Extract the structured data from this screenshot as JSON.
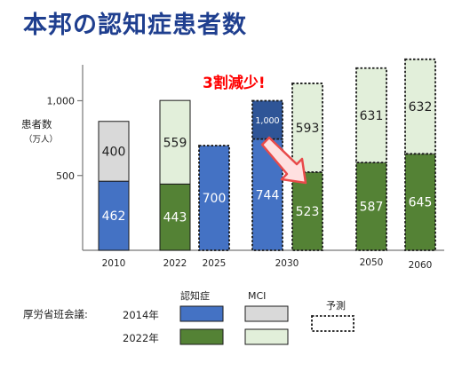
{
  "title": "本邦の認知症患者数",
  "chart_data": {
    "type": "bar",
    "stacked": true,
    "ylabel": "患者数",
    "yunit": "（万人）",
    "yticks": [
      {
        "value": 500,
        "label": "500"
      },
      {
        "value": 1000,
        "label": "1,000"
      }
    ],
    "ylim": [
      0,
      1200
    ],
    "series": [
      {
        "name": "認知症",
        "role": "dementia"
      },
      {
        "name": "MCI",
        "role": "mci"
      }
    ],
    "bars": [
      {
        "x": "2010",
        "study": "2014",
        "dementia": 462,
        "mci": 400,
        "forecast": false
      },
      {
        "x": "2022",
        "study": "2022",
        "dementia": 443,
        "mci": 559,
        "forecast": false
      },
      {
        "x": "2025",
        "study": "2014",
        "dementia": 700,
        "mci": null,
        "forecast": true
      },
      {
        "x": "2030",
        "study": "2014",
        "dementia": 744,
        "total": 1000,
        "total_label": "1,000",
        "forecast": true
      },
      {
        "x": "2030",
        "study": "2022",
        "dementia": 523,
        "mci": 593,
        "forecast": true
      },
      {
        "x": "2050",
        "study": "2022",
        "dementia": 587,
        "mci": 631,
        "forecast": true
      },
      {
        "x": "2060",
        "study": "2022",
        "dementia": 645,
        "mci": 632,
        "forecast": true
      }
    ],
    "annotation": "3割減少!",
    "legend": {
      "source_label": "厚労省班会議:",
      "rows": [
        {
          "label": "2014年",
          "dementia_color": "#4472c4",
          "mci_color": "#d9d9d9"
        },
        {
          "label": "2022年",
          "dementia_color": "#548235",
          "mci_color": "#e2efda"
        }
      ],
      "col_dementia": "認知症",
      "col_mci": "MCI",
      "forecast_label": "予測"
    }
  },
  "colors": {
    "title": "#1f3f8f",
    "dementia_2014": "#4472c4",
    "mci_2014": "#d9d9d9",
    "dementia_2022": "#548235",
    "mci_2022": "#e2efda",
    "annotation": "#ff0000",
    "arrow_fill": "#ffe0e0",
    "arrow_stroke": "#e84a4a"
  }
}
